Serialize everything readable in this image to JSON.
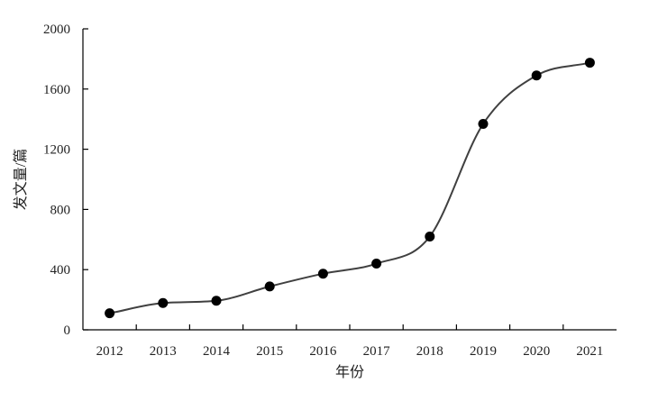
{
  "chart_data": {
    "type": "line",
    "title": "",
    "xlabel": "年份",
    "ylabel": "发文量/篇",
    "categories": [
      "2012",
      "2013",
      "2014",
      "2015",
      "2016",
      "2017",
      "2018",
      "2019",
      "2020",
      "2021"
    ],
    "series": [
      {
        "values": [
          110,
          178,
          193,
          288,
          373,
          440,
          620,
          1368,
          1690,
          1775
        ]
      }
    ],
    "ylim": [
      0,
      2000
    ],
    "yticks": [
      "0",
      "400",
      "800",
      "1200",
      "1600",
      "2000"
    ],
    "grid": false,
    "line_style": "smooth",
    "colors": {
      "line": "#404040",
      "marker": "#000000",
      "axis": "#000000"
    }
  }
}
